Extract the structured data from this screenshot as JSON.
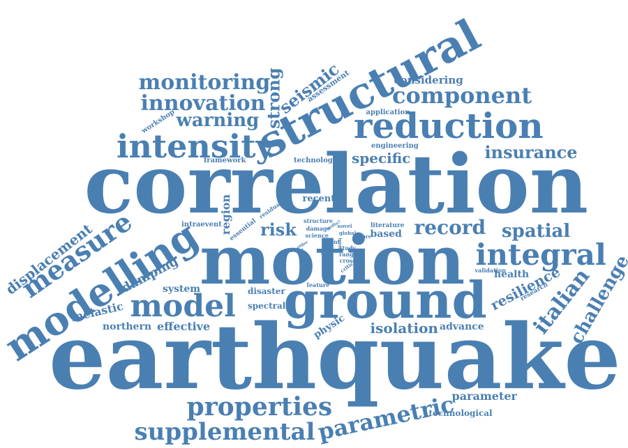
{
  "cloud": {
    "color": "#4a7fb2",
    "background": "#ffffff",
    "words": [
      {
        "text": "earthquake",
        "orient": "horizontal"
      },
      {
        "text": "correlation",
        "orient": "horizontal"
      },
      {
        "text": "motion",
        "orient": "horizontal"
      },
      {
        "text": "ground",
        "orient": "horizontal"
      },
      {
        "text": "structural",
        "orient": "rotated"
      },
      {
        "text": "modelling",
        "orient": "rotated"
      },
      {
        "text": "model",
        "orient": "horizontal"
      },
      {
        "text": "intensity",
        "orient": "horizontal"
      },
      {
        "text": "reduction",
        "orient": "horizontal"
      },
      {
        "text": "integral",
        "orient": "horizontal"
      },
      {
        "text": "properties",
        "orient": "horizontal"
      },
      {
        "text": "supplemental",
        "orient": "horizontal"
      },
      {
        "text": "parametric",
        "orient": "rotated"
      },
      {
        "text": "measure",
        "orient": "rotated"
      },
      {
        "text": "component",
        "orient": "horizontal"
      },
      {
        "text": "monitoring",
        "orient": "horizontal"
      },
      {
        "text": "innovation",
        "orient": "horizontal"
      },
      {
        "text": "warning",
        "orient": "horizontal"
      },
      {
        "text": "strong",
        "orient": "vertical"
      },
      {
        "text": "seismic",
        "orient": "rotated"
      },
      {
        "text": "italian",
        "orient": "rotated"
      },
      {
        "text": "challenge",
        "orient": "rotated"
      },
      {
        "text": "record",
        "orient": "horizontal"
      },
      {
        "text": "spatial",
        "orient": "horizontal"
      },
      {
        "text": "insurance",
        "orient": "horizontal"
      },
      {
        "text": "displacement",
        "orient": "rotated"
      },
      {
        "text": "risk",
        "orient": "horizontal"
      },
      {
        "text": "resilience",
        "orient": "rotated"
      },
      {
        "text": "isolation",
        "orient": "horizontal"
      },
      {
        "text": "specific",
        "orient": "horizontal"
      },
      {
        "text": "damping",
        "orient": "rotated"
      },
      {
        "text": "inelastic",
        "orient": "horizontal"
      },
      {
        "text": "effective",
        "orient": "horizontal"
      },
      {
        "text": "northern",
        "orient": "horizontal"
      },
      {
        "text": "region",
        "orient": "vertical"
      },
      {
        "text": "parameter",
        "orient": "horizontal"
      },
      {
        "text": "health",
        "orient": "horizontal"
      },
      {
        "text": "considering",
        "orient": "horizontal"
      },
      {
        "text": "physic",
        "orient": "rotated"
      },
      {
        "text": "advance",
        "orient": "horizontal"
      },
      {
        "text": "system",
        "orient": "horizontal"
      },
      {
        "text": "disaster",
        "orient": "horizontal"
      },
      {
        "text": "spectral",
        "orient": "horizontal"
      },
      {
        "text": "recent",
        "orient": "horizontal"
      },
      {
        "text": "based",
        "orient": "horizontal"
      },
      {
        "text": "technological",
        "orient": "horizontal"
      },
      {
        "text": "assessment",
        "orient": "rotated"
      },
      {
        "text": "application",
        "orient": "horizontal"
      },
      {
        "text": "engineering",
        "orient": "horizontal"
      },
      {
        "text": "technology",
        "orient": "horizontal"
      },
      {
        "text": "framework",
        "orient": "horizontal"
      },
      {
        "text": "workshop",
        "orient": "rotated"
      },
      {
        "text": "intraevent",
        "orient": "horizontal"
      },
      {
        "text": "essential",
        "orient": "rotated"
      },
      {
        "text": "residual",
        "orient": "rotated"
      },
      {
        "text": "research",
        "orient": "rotated"
      },
      {
        "text": "validation",
        "orient": "horizontal"
      },
      {
        "text": "literature",
        "orient": "horizontal"
      },
      {
        "text": "feature",
        "orient": "horizontal"
      },
      {
        "text": "structure",
        "orient": "horizontal"
      },
      {
        "text": "damage",
        "orient": "horizontal"
      },
      {
        "text": "science",
        "orient": "horizontal"
      },
      {
        "text": "event",
        "orient": "horizontal"
      },
      {
        "text": "cross",
        "orient": "horizontal"
      },
      {
        "text": "range",
        "orient": "horizontal"
      },
      {
        "text": "study",
        "orient": "horizontal"
      },
      {
        "text": "global",
        "orient": "horizontal"
      },
      {
        "text": "novel",
        "orient": "horizontal"
      },
      {
        "text": "future",
        "orient": "horizontal"
      },
      {
        "text": "critical",
        "orient": "rotated"
      },
      {
        "text": "trend",
        "orient": "horizontal"
      },
      {
        "text": "older",
        "orient": "rotated"
      },
      {
        "text": "audio?",
        "orient": "rotated"
      },
      {
        "text": "sources",
        "orient": "rotated"
      },
      {
        "text": "issue",
        "orient": "vertical"
      }
    ]
  }
}
